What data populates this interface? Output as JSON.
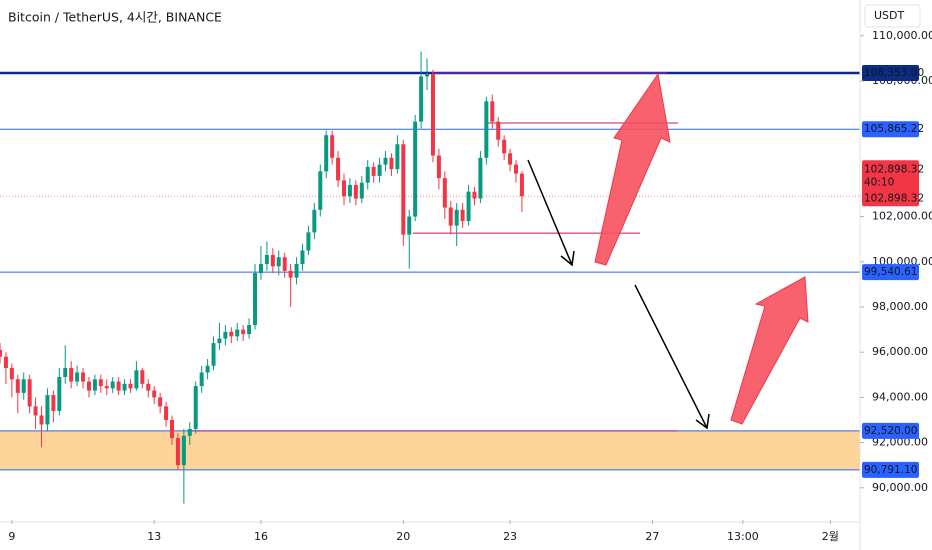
{
  "chart_data": {
    "type": "candlestick",
    "title": "Bitcoin / TetherUS, 4시간, BINANCE",
    "currency": "USDT",
    "up_color": "#089981",
    "down_color": "#f23645",
    "xlim": [
      -2,
      143
    ],
    "ylim": [
      88574,
      111583
    ],
    "xticks": [
      {
        "value": 0,
        "label": "9"
      },
      {
        "value": 24,
        "label": "13"
      },
      {
        "value": 42,
        "label": "16"
      },
      {
        "value": 66,
        "label": "20"
      },
      {
        "value": 84,
        "label": "23"
      },
      {
        "value": 108,
        "label": "27"
      },
      {
        "value": 123.25,
        "label": "13:00"
      },
      {
        "value": 138,
        "label": "2월"
      }
    ],
    "yticks": [
      {
        "value": 90000,
        "label": "90,000.00"
      },
      {
        "value": 92000,
        "label": "92,000.00"
      },
      {
        "value": 94000,
        "label": "94,000.00"
      },
      {
        "value": 96000,
        "label": "96,000.00"
      },
      {
        "value": 98000,
        "label": "98,000.00"
      },
      {
        "value": 100000,
        "label": "100,000.00"
      },
      {
        "value": 102000,
        "label": "102,000.00"
      },
      {
        "value": 108000,
        "label": "108,000.00"
      },
      {
        "value": 110000,
        "label": "110,000.00"
      }
    ],
    "x": [
      -2,
      -1,
      0,
      1,
      2,
      3,
      4,
      5,
      6,
      7,
      8,
      9,
      10,
      11,
      12,
      13,
      14,
      15,
      16,
      17,
      18,
      19,
      20,
      21,
      22,
      23,
      24,
      25,
      26,
      27,
      28,
      29,
      30,
      31,
      32,
      33,
      34,
      35,
      36,
      37,
      38,
      39,
      40,
      41,
      42,
      43,
      44,
      45,
      46,
      47,
      48,
      49,
      50,
      51,
      52,
      53,
      54,
      55,
      56,
      57,
      58,
      59,
      60,
      61,
      62,
      63,
      64,
      65,
      66,
      67,
      68,
      69,
      70,
      71,
      72,
      73,
      74,
      75,
      76,
      77,
      78,
      79,
      80,
      81,
      82,
      83,
      84,
      85,
      86
    ],
    "open": [
      96100,
      95800,
      95300,
      94800,
      94200,
      94800,
      93600,
      93200,
      92800,
      94100,
      93400,
      94900,
      95300,
      94700,
      95100,
      94700,
      94300,
      94800,
      94500,
      94400,
      94700,
      94300,
      94600,
      94400,
      95200,
      94600,
      94300,
      94000,
      93600,
      93000,
      92200,
      91000,
      92300,
      92600,
      94500,
      95100,
      95400,
      96400,
      96600,
      96900,
      96700,
      97000,
      96800,
      97200,
      99500,
      99900,
      100300,
      99800,
      100200,
      99600,
      99300,
      99900,
      100500,
      101300,
      102300,
      104000,
      105600,
      104600,
      103600,
      102900,
      103400,
      102800,
      103500,
      104200,
      103800,
      104300,
      104600,
      104100,
      105200,
      101200,
      102000,
      106200,
      108200,
      108300,
      104700,
      103700,
      102400,
      101600,
      102300,
      101800,
      103100,
      102800,
      104600,
      107100,
      106200,
      105400,
      104800,
      104300,
      103900
    ],
    "high": [
      96400,
      96000,
      95500,
      95000,
      95100,
      95000,
      94000,
      93600,
      94400,
      94300,
      95300,
      96300,
      95600,
      95400,
      95300,
      94900,
      95000,
      95000,
      94800,
      94900,
      94900,
      94800,
      94800,
      95600,
      95300,
      94800,
      94500,
      94200,
      93800,
      93200,
      92400,
      92600,
      92900,
      94700,
      95400,
      95700,
      96700,
      97300,
      97200,
      97100,
      97300,
      97200,
      97500,
      99900,
      100700,
      100900,
      100600,
      100500,
      100400,
      99900,
      100200,
      100800,
      101600,
      102600,
      104300,
      105800,
      105800,
      104900,
      103900,
      103700,
      103600,
      103800,
      104500,
      104400,
      104600,
      104900,
      104800,
      105600,
      105400,
      102300,
      106500,
      109300,
      109000,
      108500,
      105000,
      104000,
      102700,
      102600,
      102600,
      103400,
      103300,
      104900,
      107300,
      107400,
      106400,
      105600,
      105000,
      104500,
      104000
    ],
    "low": [
      95500,
      94600,
      94000,
      93300,
      93900,
      93300,
      92600,
      91800,
      92500,
      92900,
      93200,
      94600,
      94400,
      94500,
      94400,
      94000,
      94100,
      94200,
      94100,
      94200,
      94100,
      94100,
      94200,
      94300,
      94400,
      94000,
      93700,
      93300,
      92700,
      91900,
      90800,
      89300,
      91900,
      92400,
      94200,
      94800,
      95200,
      96100,
      96300,
      96400,
      96500,
      96500,
      96600,
      97000,
      99200,
      99600,
      99500,
      99400,
      99300,
      98000,
      99000,
      99600,
      100300,
      101000,
      102000,
      103700,
      104300,
      103300,
      102500,
      102600,
      102500,
      102600,
      103200,
      103500,
      103500,
      104000,
      103800,
      103900,
      100700,
      99700,
      101800,
      105900,
      107600,
      104400,
      103200,
      101900,
      101200,
      100700,
      101500,
      101600,
      102500,
      102600,
      104300,
      105900,
      105100,
      104500,
      104000,
      103500,
      102200
    ],
    "close": [
      95800,
      95300,
      94800,
      94200,
      94800,
      93600,
      93200,
      92800,
      94100,
      93400,
      94900,
      95300,
      94700,
      95100,
      94700,
      94300,
      94800,
      94500,
      94400,
      94700,
      94300,
      94600,
      94400,
      95200,
      94600,
      94300,
      94000,
      93600,
      93000,
      92200,
      91000,
      92300,
      92600,
      94500,
      95100,
      95400,
      96400,
      96600,
      96900,
      96700,
      97000,
      96800,
      97200,
      99500,
      99900,
      100300,
      99800,
      100200,
      99600,
      99300,
      99900,
      100500,
      101300,
      102300,
      104000,
      105600,
      104600,
      103600,
      102900,
      103400,
      102800,
      103500,
      104200,
      103800,
      104300,
      104600,
      104100,
      105200,
      101200,
      102000,
      106200,
      108200,
      108300,
      104700,
      103700,
      102400,
      101600,
      102300,
      101800,
      103100,
      102800,
      104600,
      107100,
      106200,
      105400,
      104800,
      104300,
      103900,
      102898.32
    ],
    "price_lines": [
      {
        "value": 108353,
        "label": "108,353.00",
        "color": "#0c2c84"
      },
      {
        "value": 105865.22,
        "label": "105,865.22",
        "color": "#2962ff"
      },
      {
        "value": 99540.61,
        "label": "99,540.61",
        "color": "#2962ff"
      },
      {
        "value": 92520,
        "label": "92,520.00",
        "color": "#2962ff"
      },
      {
        "value": 90791.1,
        "label": "90,791.10",
        "color": "#2962ff"
      }
    ],
    "zone": {
      "from": 90791.1,
      "to": 92520,
      "color": "#fdd49a"
    },
    "segments": [
      {
        "value": 108353,
        "x": [
          70.8,
          110.5
        ],
        "color": "#9c27b0"
      },
      {
        "value": 106140,
        "x": [
          80.1,
          112.3
        ],
        "color": "#c2185b"
      },
      {
        "value": 101270,
        "x": [
          67.6,
          105.9
        ],
        "color": "#c2185b"
      },
      {
        "value": 92520,
        "x": [
          30,
          112.2
        ],
        "color": "#9c27b0"
      }
    ],
    "last_price": {
      "value": 102898.32,
      "label": "102,898.32",
      "countdown": "40:10",
      "color": "#f23645"
    }
  }
}
